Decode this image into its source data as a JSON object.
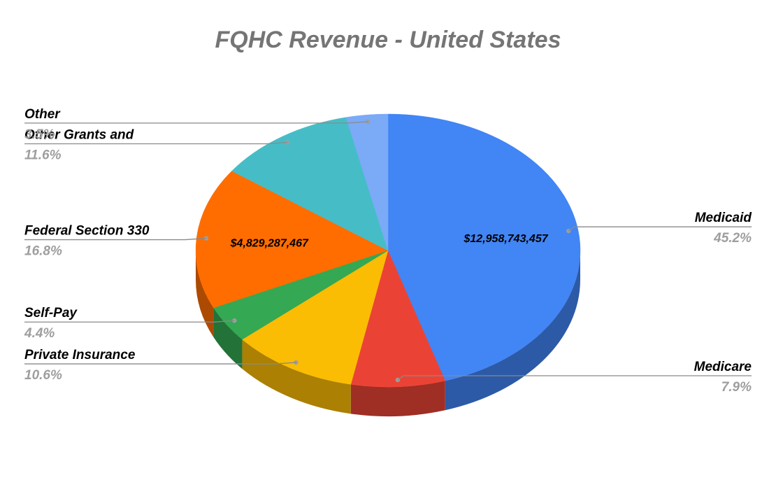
{
  "chart_data": {
    "type": "pie",
    "title": "FQHC Revenue - United States",
    "slices": [
      {
        "name": "Medicaid",
        "percent": 45.2,
        "color": "#4285f4",
        "value_label": "$12,958,743,457"
      },
      {
        "name": "Medicare",
        "percent": 7.9,
        "color": "#ea4335",
        "value_label": ""
      },
      {
        "name": "Private Insurance",
        "percent": 10.6,
        "color": "#fbbc04",
        "value_label": ""
      },
      {
        "name": "Self-Pay",
        "percent": 4.4,
        "color": "#34a853",
        "value_label": ""
      },
      {
        "name": "Federal Section 330",
        "percent": 16.8,
        "color": "#ff6d01",
        "value_label": "$4,829,287,467"
      },
      {
        "name": "Other Grants and",
        "percent": 11.6,
        "color": "#46bdc6",
        "value_label": ""
      },
      {
        "name": "Other",
        "percent": 3.5,
        "color": "#7baaf7",
        "value_label": ""
      }
    ],
    "style": "3d"
  }
}
